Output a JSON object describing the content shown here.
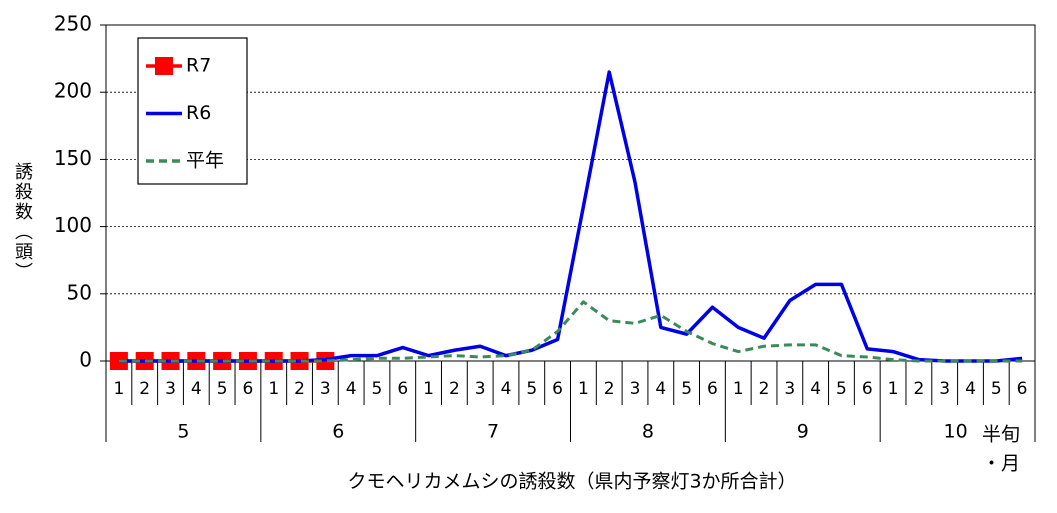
{
  "chart_data": {
    "type": "line",
    "ylabel": "誘殺数（頭）",
    "xlabel": "クモヘリカメムシの誘殺数（県内予察灯3か所合計）",
    "x_unit_label": [
      "半旬",
      "・月"
    ],
    "categories": [
      "1",
      "2",
      "3",
      "4",
      "5",
      "6",
      "1",
      "2",
      "3",
      "4",
      "5",
      "6",
      "1",
      "2",
      "3",
      "4",
      "5",
      "6",
      "1",
      "2",
      "3",
      "4",
      "5",
      "6",
      "1",
      "2",
      "3",
      "4",
      "5",
      "6",
      "1",
      "2",
      "3",
      "4",
      "5",
      "6"
    ],
    "groups": [
      "5",
      "6",
      "7",
      "8",
      "9",
      "10"
    ],
    "ylim": [
      0,
      250
    ],
    "yticks": [
      0,
      50,
      100,
      150,
      200,
      250
    ],
    "grid": true,
    "legend": "upper left",
    "series": [
      {
        "name": "R7",
        "color": "#ff0000",
        "marker": "square",
        "values": [
          0,
          0,
          0,
          0,
          0,
          0,
          0,
          0,
          0,
          null,
          null,
          null,
          null,
          null,
          null,
          null,
          null,
          null,
          null,
          null,
          null,
          null,
          null,
          null,
          null,
          null,
          null,
          null,
          null,
          null,
          null,
          null,
          null,
          null,
          null,
          null
        ]
      },
      {
        "name": "R6",
        "color": "#0000e6",
        "values": [
          0,
          0,
          0,
          0,
          0,
          0,
          0,
          0,
          1,
          4,
          4,
          10,
          4,
          8,
          11,
          4,
          8,
          16,
          115,
          215,
          133,
          25,
          20,
          40,
          25,
          17,
          45,
          57,
          57,
          9,
          7,
          1,
          0,
          0,
          0,
          2
        ]
      },
      {
        "name": "平年",
        "color": "#3a8a5c",
        "dashed": true,
        "values": [
          0,
          0,
          0,
          0,
          0,
          0,
          0,
          0,
          0,
          1,
          2,
          2,
          3,
          4,
          3,
          4,
          8,
          22,
          44,
          30,
          28,
          34,
          22,
          13,
          7,
          11,
          12,
          12,
          4,
          3,
          1,
          0,
          0,
          0,
          0,
          0
        ]
      }
    ]
  }
}
